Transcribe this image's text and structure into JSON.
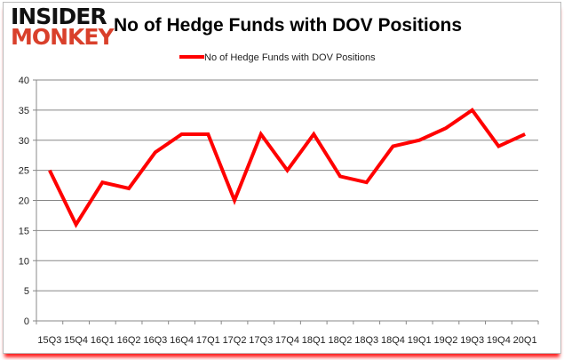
{
  "logo": {
    "line1": "INSIDER",
    "line2": "MONKEY"
  },
  "chart_data": {
    "type": "line",
    "title": "No of Hedge Funds with DOV Positions",
    "xlabel": "",
    "ylabel": "",
    "categories": [
      "15Q3",
      "15Q4",
      "16Q1",
      "16Q2",
      "16Q3",
      "16Q4",
      "17Q1",
      "17Q2",
      "17Q3",
      "17Q4",
      "18Q1",
      "18Q2",
      "18Q3",
      "18Q4",
      "19Q1",
      "19Q2",
      "19Q3",
      "19Q4",
      "20Q1"
    ],
    "series": [
      {
        "name": "No of Hedge Funds with DOV Positions",
        "color": "#ff0000",
        "values": [
          25,
          16,
          23,
          22,
          28,
          31,
          31,
          20,
          31,
          25,
          31,
          24,
          23,
          29,
          30,
          32,
          35,
          29,
          31
        ]
      }
    ],
    "ylim": [
      0,
      40
    ],
    "yticks": [
      0,
      5,
      10,
      15,
      20,
      25,
      30,
      35,
      40
    ],
    "grid": true,
    "legend": "top-center"
  }
}
